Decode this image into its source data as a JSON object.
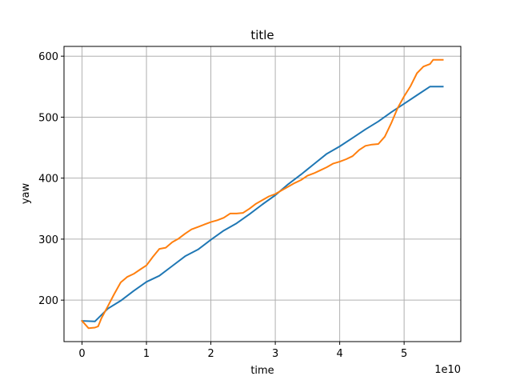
{
  "chart_data": {
    "type": "line",
    "title": "title",
    "xlabel": "time",
    "ylabel": "yaw",
    "x_offset_text": "1e10",
    "xlim": [
      -0.28,
      5.88
    ],
    "ylim": [
      132,
      616
    ],
    "x_ticks": [
      0,
      1,
      2,
      3,
      4,
      5
    ],
    "x_tick_labels": [
      "0",
      "1",
      "2",
      "3",
      "4",
      "5"
    ],
    "y_ticks": [
      200,
      300,
      400,
      500,
      600
    ],
    "y_tick_labels": [
      "200",
      "300",
      "400",
      "500",
      "600"
    ],
    "grid": true,
    "series": [
      {
        "color": "#1f77b4",
        "x": [
          0,
          0.2,
          0.4,
          0.6,
          0.8,
          1.0,
          1.2,
          1.4,
          1.6,
          1.8,
          2.0,
          2.2,
          2.4,
          2.6,
          2.8,
          3.0,
          3.2,
          3.4,
          3.6,
          3.8,
          4.0,
          4.2,
          4.4,
          4.6,
          4.8,
          5.0,
          5.2,
          5.4,
          5.6
        ],
        "y": [
          166,
          165,
          186,
          199,
          215,
          230,
          240,
          256,
          272,
          283,
          299,
          314,
          326,
          341,
          357,
          372,
          390,
          406,
          423,
          440,
          452,
          466,
          480,
          493,
          508,
          522,
          536,
          550,
          550
        ]
      },
      {
        "color": "#ff7f0e",
        "x": [
          0,
          0.1,
          0.2,
          0.25,
          0.3,
          0.4,
          0.5,
          0.6,
          0.7,
          0.8,
          0.9,
          1.0,
          1.05,
          1.1,
          1.2,
          1.3,
          1.4,
          1.5,
          1.6,
          1.7,
          1.8,
          1.9,
          2.0,
          2.1,
          2.2,
          2.3,
          2.4,
          2.5,
          2.6,
          2.7,
          2.8,
          2.9,
          3.0,
          3.1,
          3.2,
          3.3,
          3.4,
          3.5,
          3.6,
          3.7,
          3.8,
          3.9,
          4.0,
          4.1,
          4.2,
          4.3,
          4.4,
          4.5,
          4.6,
          4.7,
          4.8,
          4.9,
          5.0,
          5.1,
          5.2,
          5.3,
          5.4,
          5.45,
          5.5,
          5.6
        ],
        "y": [
          166,
          154,
          155,
          157,
          170,
          190,
          210,
          229,
          238,
          243,
          250,
          257,
          264,
          271,
          284,
          286,
          295,
          301,
          309,
          316,
          320,
          324,
          328,
          331,
          335,
          342,
          342,
          343,
          350,
          358,
          364,
          370,
          374,
          380,
          386,
          392,
          397,
          404,
          408,
          413,
          418,
          424,
          427,
          431,
          436,
          446,
          453,
          455,
          456,
          468,
          490,
          515,
          534,
          551,
          572,
          583,
          587,
          594,
          594,
          594
        ]
      }
    ]
  }
}
